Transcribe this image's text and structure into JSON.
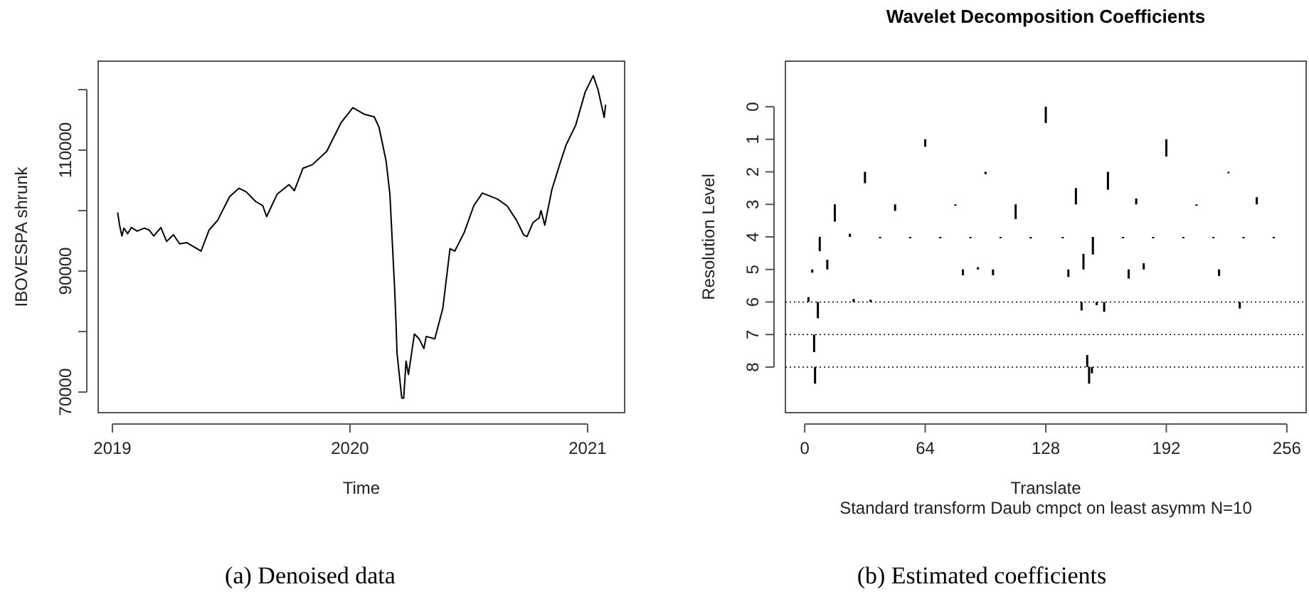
{
  "chart_data": [
    {
      "type": "line",
      "xlabel": "Time",
      "ylabel": "IBOVESPA shrunk",
      "xlim": [
        2018.94,
        2021.156
      ],
      "ylim": [
        66600,
        124700
      ],
      "xticks": [
        2019,
        2020,
        2021
      ],
      "yticks": [
        70000,
        {
          "value": 80000,
          "label": null
        },
        90000,
        {
          "value": 100000,
          "label": null
        },
        110000,
        {
          "value": 120000,
          "label": null
        }
      ],
      "series": [
        {
          "color": "#000000",
          "x": [
            2019.022,
            2019.03,
            2019.04,
            2019.048,
            2019.064,
            2019.08,
            2019.104,
            2019.134,
            2019.154,
            2019.174,
            2019.204,
            2019.228,
            2019.257,
            2019.283,
            2019.313,
            2019.373,
            2019.407,
            2019.443,
            2019.493,
            2019.533,
            2019.563,
            2019.603,
            2019.633,
            2019.649,
            2019.693,
            2019.743,
            2019.766,
            2019.802,
            2019.842,
            2019.902,
            2019.962,
            2020.012,
            2020.062,
            2020.102,
            2020.122,
            2020.152,
            2020.168,
            2020.188,
            2020.194,
            2020.198,
            2020.218,
            2020.226,
            2020.236,
            2020.246,
            2020.255,
            2020.271,
            2020.291,
            2020.311,
            2020.321,
            2020.357,
            2020.391,
            2020.421,
            2020.441,
            2020.481,
            2020.521,
            2020.557,
            2020.621,
            2020.661,
            2020.701,
            2020.731,
            2020.745,
            2020.77,
            2020.796,
            2020.804,
            2020.82,
            2020.83,
            2020.85,
            2020.884,
            2020.91,
            2020.95,
            2020.99,
            2021.024,
            2021.044,
            2021.07,
            2021.076
          ],
          "values": [
            99700,
            97600,
            95800,
            97100,
            96200,
            97200,
            96600,
            97100,
            96800,
            95800,
            97200,
            94900,
            96000,
            94500,
            94700,
            93300,
            96800,
            98400,
            102300,
            103700,
            103100,
            101500,
            100800,
            99000,
            102700,
            104300,
            103300,
            107000,
            107600,
            109800,
            114500,
            117000,
            115900,
            115500,
            113800,
            108200,
            102700,
            87000,
            81100,
            76400,
            69000,
            69000,
            75100,
            72900,
            75300,
            79600,
            78800,
            77200,
            79200,
            78800,
            83900,
            93700,
            93300,
            96400,
            100800,
            102900,
            101900,
            100800,
            98400,
            96000,
            95700,
            98000,
            98800,
            100000,
            97600,
            99600,
            103500,
            107800,
            110900,
            114100,
            119600,
            122300,
            120000,
            115400,
            117500
          ]
        }
      ],
      "annotations": [
        "(a) Denoised data"
      ]
    },
    {
      "type": "bar",
      "title": "Wavelet Decomposition Coefficients",
      "xlabel": "Translate",
      "ylabel": "Resolution Level",
      "xlim": [
        -10.24,
        266.24
      ],
      "ylim": [
        9.4,
        -1.4
      ],
      "xticks": [
        0,
        64,
        128,
        192,
        256
      ],
      "yticks": [
        0,
        1,
        2,
        3,
        4,
        5,
        6,
        7,
        8
      ],
      "x": [
        2,
        4,
        5,
        5.5,
        7,
        8,
        12,
        16,
        24,
        26,
        32,
        35,
        40,
        48,
        56,
        64,
        72,
        80,
        84,
        88,
        92,
        96,
        100,
        104,
        112,
        120,
        128,
        137,
        140,
        144,
        147,
        148,
        150,
        151,
        152.5,
        153,
        155,
        159,
        161,
        169,
        172,
        176,
        180,
        185,
        192,
        201,
        208,
        217,
        220,
        225,
        231,
        233,
        240,
        249
      ],
      "base": [
        6,
        5,
        7,
        8,
        6,
        4,
        5,
        3,
        4,
        6,
        2,
        6,
        4,
        3,
        4,
        1,
        4,
        3,
        5,
        4,
        5,
        2,
        5,
        4,
        3,
        4,
        0,
        4,
        5,
        3,
        6,
        5,
        8,
        8,
        8,
        4,
        6,
        6,
        2,
        4,
        5,
        3,
        5,
        4,
        1,
        4,
        3,
        4,
        5,
        2,
        6,
        4,
        3,
        4
      ],
      "values": [
        -0.15,
        0.1,
        0.54,
        0.51,
        0.5,
        0.44,
        -0.3,
        0.53,
        -0.1,
        -0.09,
        0.35,
        -0.07,
        0.03,
        0.2,
        0.03,
        0.23,
        0.03,
        0.03,
        0.18,
        0.03,
        -0.07,
        0.07,
        0.18,
        0.03,
        0.45,
        0.05,
        0.5,
        0.03,
        0.23,
        -0.5,
        0.26,
        -0.48,
        -0.37,
        0.51,
        0.19,
        0.54,
        0.1,
        0.3,
        0.55,
        0.03,
        0.28,
        -0.18,
        -0.19,
        0.03,
        0.53,
        0.03,
        0.03,
        0.03,
        0.2,
        0.03,
        0.2,
        0.03,
        -0.22,
        0.03
      ],
      "color": "#000000",
      "ref_lines": [
        {
          "axis": "y",
          "value": 6,
          "line_style": "dotted",
          "color": "#000000"
        },
        {
          "axis": "y",
          "value": 7,
          "line_style": "dotted",
          "color": "#000000"
        },
        {
          "axis": "y",
          "value": 8,
          "line_style": "dotted",
          "color": "#000000"
        }
      ],
      "annotations": [
        "Standard transform Daub cmpct on least asymm N=10",
        "(b) Estimated coefficients"
      ]
    }
  ]
}
